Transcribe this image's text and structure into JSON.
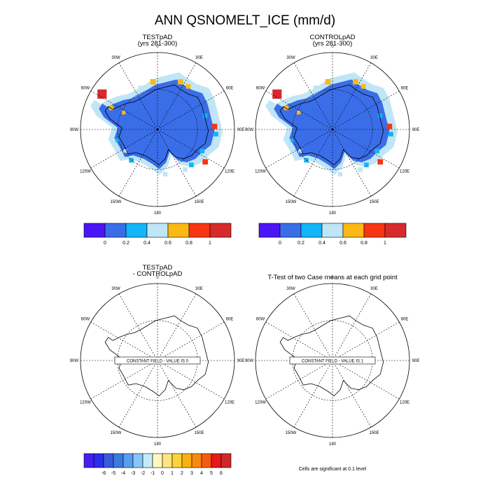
{
  "title": "ANN QSNOMELT_ICE (mm/d)",
  "panels": [
    {
      "name": "testpad",
      "title_line1": "TESTpAD",
      "title_line2": "(yrs 281-300)",
      "kind": "field",
      "note": ""
    },
    {
      "name": "controlpad",
      "title_line1": "CONTROLpAD",
      "title_line2": "(yrs 281-300)",
      "kind": "field",
      "note": ""
    },
    {
      "name": "difference",
      "title_line1": "TESTpAD",
      "title_line2": "- CONTROLpAD",
      "kind": "constant",
      "note": "CONSTANT FIELD - VALUE IS 0"
    },
    {
      "name": "ttest",
      "title_line1": "T-Test of two Case means at each grid point",
      "title_line2": "",
      "kind": "constant",
      "note": "CONSTANT FIELD - VALUE IS 1"
    }
  ],
  "longitude_labels": [
    "0",
    "30E",
    "60E",
    "90E",
    "120E",
    "150E",
    "180",
    "150W",
    "120W",
    "90W",
    "60W",
    "30W"
  ],
  "colorbar_top": {
    "colors": [
      "#4b16f5",
      "#3a6de8",
      "#13b4f8",
      "#bfe6f6",
      "#fbb916",
      "#f73512",
      "#d62b2b"
    ],
    "labels": [
      "0",
      "0.2",
      "0.4",
      "0.6",
      "0.8",
      "1"
    ]
  },
  "colorbar_bottom": {
    "colors": [
      "#4620f0",
      "#2a2ee8",
      "#3b5ad9",
      "#3b7be0",
      "#5a9cf0",
      "#88c6f8",
      "#c5ebf8",
      "#fff7c0",
      "#fde680",
      "#fcd33a",
      "#fbb010",
      "#f88a10",
      "#f65a10",
      "#e51a1a",
      "#d02828"
    ],
    "labels": [
      "-6",
      "-5",
      "-4",
      "-3",
      "-2",
      "-1",
      "0",
      "1",
      "2",
      "3",
      "4",
      "5",
      "6"
    ]
  },
  "footer_note": "Cells are significant at 0.1 level",
  "field_colors": {
    "base": "#3a6de8",
    "light": "#bfe6f6",
    "cyan": "#13b4f8",
    "orange": "#fbb916",
    "red": "#f73512",
    "darkred": "#d62b2b"
  }
}
